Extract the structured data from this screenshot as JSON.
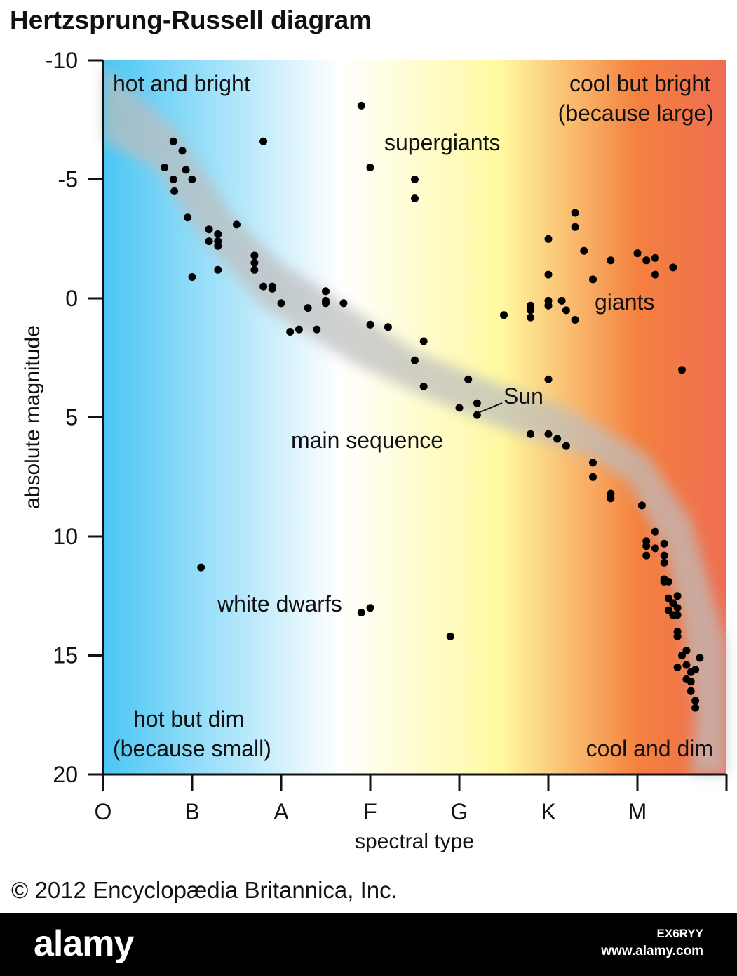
{
  "title": "Hertzsprung-Russell diagram",
  "copyright": "© 2012 Encyclopædia Britannica, Inc.",
  "footer": {
    "logo": "alamy",
    "image_id": "EX6RYY",
    "url": "www.alamy.com"
  },
  "chart_data": {
    "type": "scatter",
    "title": "Hertzsprung-Russell diagram",
    "xlabel": "spectral type",
    "ylabel": "absolute magnitude",
    "x_ticks": [
      "O",
      "B",
      "A",
      "F",
      "G",
      "K",
      "M"
    ],
    "xlim": [
      0,
      7
    ],
    "y_ticks": [
      -10,
      -5,
      0,
      5,
      10,
      15,
      20
    ],
    "ylim": [
      -10,
      20
    ],
    "y_inverted": true,
    "grid": false,
    "background_gradient": [
      "#4ac6f4",
      "#ffffff",
      "#fff9a0",
      "#f4803f",
      "#ef6e52"
    ],
    "main_sequence_band_color": "#bdbdbd",
    "point_color": "#000000",
    "annotations": {
      "hot_bright": "hot and bright",
      "cool_bright_1": "cool but bright",
      "cool_bright_2": "(because large)",
      "supergiants": "supergiants",
      "giants": "giants",
      "sun": "Sun",
      "main_sequence": "main sequence",
      "white_dwarfs": "white dwarfs",
      "hot_dim_1": "hot but dim",
      "hot_dim_2": "(because small)",
      "cool_dim": "cool and dim"
    },
    "main_sequence_band": {
      "upper": [
        [
          0,
          -9.8
        ],
        [
          0.8,
          -7.2
        ],
        [
          1.5,
          -3.3
        ],
        [
          2.0,
          -1.5
        ],
        [
          2.7,
          0.2
        ],
        [
          3.5,
          2.2
        ],
        [
          4.3,
          3.4
        ],
        [
          5.2,
          4.6
        ],
        [
          6.1,
          6.5
        ],
        [
          6.6,
          9.3
        ],
        [
          7.0,
          14.5
        ],
        [
          7.0,
          20
        ]
      ],
      "lower": [
        [
          0,
          -6.6
        ],
        [
          0.6,
          -5.4
        ],
        [
          1.1,
          -2.6
        ],
        [
          1.8,
          0.4
        ],
        [
          2.8,
          2.7
        ],
        [
          3.6,
          4.1
        ],
        [
          4.5,
          5.5
        ],
        [
          5.5,
          6.7
        ],
        [
          5.9,
          7.7
        ],
        [
          6.3,
          10.5
        ],
        [
          6.5,
          13.5
        ],
        [
          6.65,
          17.5
        ],
        [
          6.6,
          20
        ]
      ]
    },
    "points": [
      [
        0.79,
        -6.6
      ],
      [
        0.89,
        -6.2
      ],
      [
        0.69,
        -5.5
      ],
      [
        0.79,
        -5.0
      ],
      [
        0.93,
        -5.4
      ],
      [
        1.0,
        -5.0
      ],
      [
        0.8,
        -4.5
      ],
      [
        0.95,
        -3.4
      ],
      [
        1.19,
        -2.9
      ],
      [
        1.19,
        -2.4
      ],
      [
        1.29,
        -2.4
      ],
      [
        1.29,
        -2.7
      ],
      [
        1.29,
        -2.2
      ],
      [
        1.5,
        -3.1
      ],
      [
        1.0,
        -0.9
      ],
      [
        1.29,
        -1.2
      ],
      [
        1.7,
        -1.8
      ],
      [
        1.7,
        -1.5
      ],
      [
        1.7,
        -1.2
      ],
      [
        1.8,
        -0.5
      ],
      [
        1.9,
        -0.5
      ],
      [
        1.9,
        -0.4
      ],
      [
        2.0,
        0.2
      ],
      [
        2.3,
        0.4
      ],
      [
        2.5,
        -0.3
      ],
      [
        2.5,
        0.1
      ],
      [
        2.5,
        0.2
      ],
      [
        2.7,
        0.2
      ],
      [
        2.1,
        1.4
      ],
      [
        2.2,
        1.3
      ],
      [
        2.4,
        1.3
      ],
      [
        2.9,
        -8.1
      ],
      [
        1.8,
        -6.6
      ],
      [
        3.0,
        -5.5
      ],
      [
        3.5,
        -5.0
      ],
      [
        3.5,
        -4.2
      ],
      [
        3.0,
        1.1
      ],
      [
        3.2,
        1.2
      ],
      [
        3.5,
        2.6
      ],
      [
        3.6,
        1.8
      ],
      [
        3.6,
        3.7
      ],
      [
        4.0,
        4.6
      ],
      [
        4.1,
        3.4
      ],
      [
        4.2,
        4.9
      ],
      [
        4.2,
        4.4
      ],
      [
        4.5,
        0.7
      ],
      [
        4.8,
        0.8
      ],
      [
        4.8,
        0.5
      ],
      [
        4.8,
        0.3
      ],
      [
        5.0,
        -2.5
      ],
      [
        5.0,
        -1.0
      ],
      [
        5.0,
        0.3
      ],
      [
        5.0,
        0.1
      ],
      [
        5.15,
        0.1
      ],
      [
        5.2,
        0.5
      ],
      [
        5.3,
        0.9
      ],
      [
        5.3,
        -3.0
      ],
      [
        5.3,
        -3.6
      ],
      [
        5.4,
        -2.0
      ],
      [
        5.5,
        -0.8
      ],
      [
        5.7,
        -1.6
      ],
      [
        6.0,
        -1.9
      ],
      [
        6.1,
        -1.6
      ],
      [
        6.2,
        -1.7
      ],
      [
        6.2,
        -1.0
      ],
      [
        6.4,
        -1.3
      ],
      [
        6.5,
        3.0
      ],
      [
        4.8,
        5.7
      ],
      [
        5.0,
        5.7
      ],
      [
        5.1,
        5.9
      ],
      [
        5.2,
        6.2
      ],
      [
        5.0,
        3.4
      ],
      [
        5.5,
        6.9
      ],
      [
        5.5,
        7.5
      ],
      [
        5.7,
        8.2
      ],
      [
        5.7,
        8.4
      ],
      [
        6.05,
        8.7
      ],
      [
        6.1,
        10.2
      ],
      [
        6.1,
        10.4
      ],
      [
        6.1,
        10.8
      ],
      [
        6.2,
        9.8
      ],
      [
        6.2,
        10.5
      ],
      [
        6.3,
        10.3
      ],
      [
        6.3,
        10.8
      ],
      [
        6.3,
        11.1
      ],
      [
        6.3,
        11.8
      ],
      [
        6.3,
        11.9
      ],
      [
        6.35,
        11.9
      ],
      [
        6.35,
        12.6
      ],
      [
        6.35,
        13.1
      ],
      [
        6.4,
        12.8
      ],
      [
        6.45,
        13.3
      ],
      [
        6.4,
        13.3
      ],
      [
        6.45,
        13.0
      ],
      [
        6.45,
        14.0
      ],
      [
        6.45,
        14.2
      ],
      [
        6.45,
        15.5
      ],
      [
        6.45,
        12.5
      ],
      [
        6.5,
        15.0
      ],
      [
        6.55,
        15.4
      ],
      [
        6.55,
        14.8
      ],
      [
        6.6,
        15.7
      ],
      [
        6.6,
        16.1
      ],
      [
        6.6,
        16.5
      ],
      [
        6.65,
        15.6
      ],
      [
        6.65,
        16.9
      ],
      [
        6.65,
        17.2
      ],
      [
        6.7,
        15.1
      ],
      [
        6.55,
        16.0
      ],
      [
        1.1,
        11.3
      ],
      [
        2.9,
        13.2
      ],
      [
        3.0,
        13.0
      ],
      [
        3.9,
        14.2
      ]
    ]
  }
}
